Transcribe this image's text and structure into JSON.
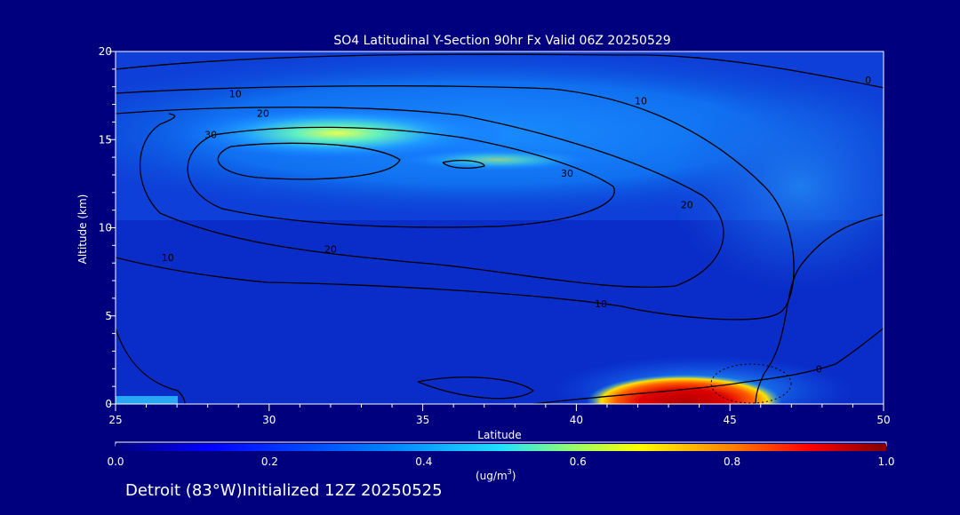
{
  "chart_data": {
    "type": "heatmap",
    "title": "SO4 Latitudinal Y-Section 90hr  Fx Valid 06Z 20250529",
    "xlabel": "Latitude",
    "ylabel": "Altitude (km)",
    "xlim": [
      25,
      50
    ],
    "ylim": [
      0,
      20
    ],
    "x_ticks": [
      "25",
      "30",
      "35",
      "40",
      "45",
      "50"
    ],
    "y_ticks": [
      "0",
      "5",
      "10",
      "15",
      "20"
    ],
    "colorbar": {
      "label_main": "(ug/m",
      "label_sup": "3",
      "label_end": ")",
      "ticks": [
        "0.0",
        "0.2",
        "0.4",
        "0.6",
        "0.8",
        "1.0"
      ],
      "range": [
        0.0,
        1.0
      ]
    },
    "concentration_features": [
      {
        "name": "upper-level plume",
        "lat_range": [
          25,
          45
        ],
        "alt_range": [
          13.5,
          17
        ],
        "peak_value": 0.5,
        "peak_lat": 32,
        "peak_alt": 15.5
      },
      {
        "name": "surface plume",
        "lat_range": [
          39,
          46
        ],
        "alt_range": [
          0,
          1.5
        ],
        "peak_value": 1.0,
        "peak_lat": 44,
        "peak_alt": 0.5
      }
    ],
    "contour_labels": [
      {
        "text": "10",
        "lat": 28.9,
        "alt": 17.6
      },
      {
        "text": "20",
        "lat": 29.8,
        "alt": 16.5
      },
      {
        "text": "30",
        "lat": 28.1,
        "alt": 15.3
      },
      {
        "text": "10",
        "lat": 42.1,
        "alt": 17.2
      },
      {
        "text": "30",
        "lat": 39.7,
        "alt": 13.1
      },
      {
        "text": "20",
        "lat": 43.6,
        "alt": 11.3
      },
      {
        "text": "20",
        "lat": 32.0,
        "alt": 8.8
      },
      {
        "text": "10",
        "lat": 26.7,
        "alt": 8.3
      },
      {
        "text": "10",
        "lat": 40.8,
        "alt": 5.7
      },
      {
        "text": "0",
        "lat": 49.5,
        "alt": 18.4
      },
      {
        "text": "0",
        "lat": 47.9,
        "alt": 2.0
      }
    ]
  },
  "footer": {
    "location": "Detroit (83°W)Initialized 12Z 20250525"
  }
}
